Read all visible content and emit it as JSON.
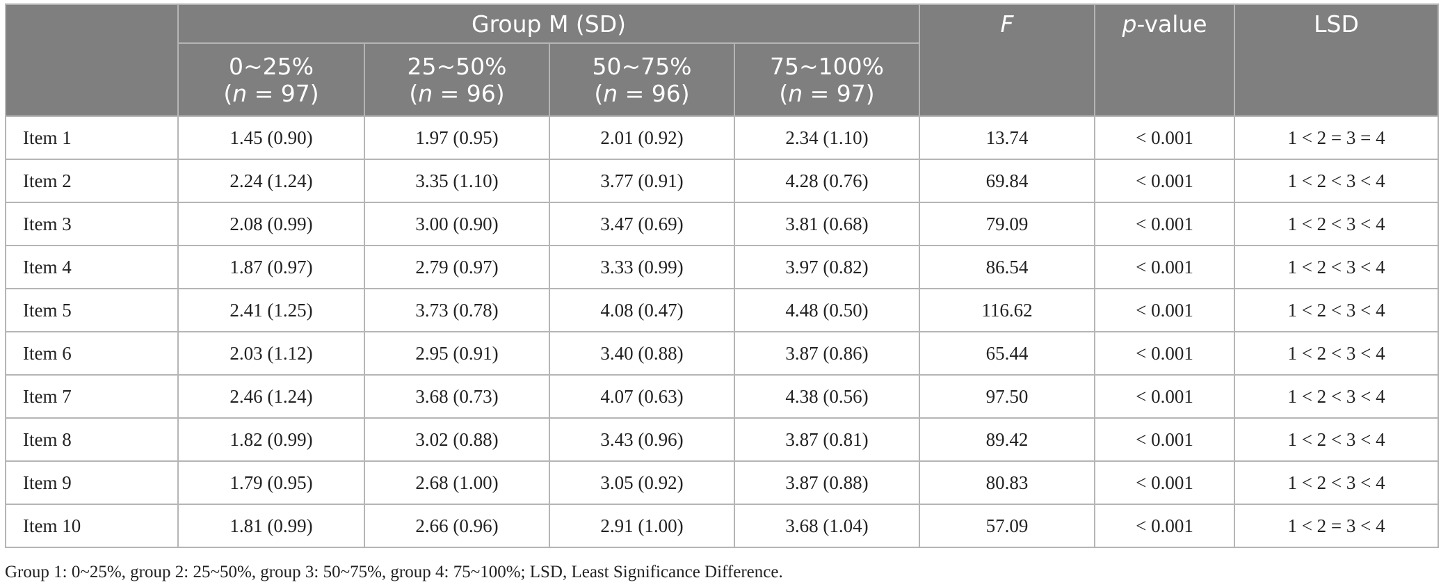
{
  "header": {
    "group_label": "Group M (SD)",
    "f_label": "F",
    "p_italic": "p",
    "p_rest": "-value",
    "lsd_label": "LSD",
    "groups": [
      {
        "range": "0~25%",
        "n": "97"
      },
      {
        "range": "25~50%",
        "n": "96"
      },
      {
        "range": "50~75%",
        "n": "96"
      },
      {
        "range": "75~100%",
        "n": "97"
      }
    ],
    "n_symbol": "n",
    "n_equals": " = "
  },
  "rows": [
    {
      "item": "Item 1",
      "g1": "1.45 (0.90)",
      "g2": "1.97 (0.95)",
      "g3": "2.01 (0.92)",
      "g4": "2.34 (1.10)",
      "f": "13.74",
      "p": "< 0.001",
      "lsd": "1 < 2 = 3 = 4"
    },
    {
      "item": "Item 2",
      "g1": "2.24 (1.24)",
      "g2": "3.35 (1.10)",
      "g3": "3.77 (0.91)",
      "g4": "4.28 (0.76)",
      "f": "69.84",
      "p": "< 0.001",
      "lsd": "1 < 2 < 3 < 4"
    },
    {
      "item": "Item 3",
      "g1": "2.08 (0.99)",
      "g2": "3.00 (0.90)",
      "g3": "3.47 (0.69)",
      "g4": "3.81 (0.68)",
      "f": "79.09",
      "p": "< 0.001",
      "lsd": "1 < 2 < 3 < 4"
    },
    {
      "item": "Item 4",
      "g1": "1.87 (0.97)",
      "g2": "2.79 (0.97)",
      "g3": "3.33 (0.99)",
      "g4": "3.97 (0.82)",
      "f": "86.54",
      "p": "< 0.001",
      "lsd": "1 < 2 < 3 < 4"
    },
    {
      "item": "Item 5",
      "g1": "2.41 (1.25)",
      "g2": "3.73 (0.78)",
      "g3": "4.08 (0.47)",
      "g4": "4.48 (0.50)",
      "f": "116.62",
      "p": "< 0.001",
      "lsd": "1 < 2 < 3 < 4"
    },
    {
      "item": "Item 6",
      "g1": "2.03 (1.12)",
      "g2": "2.95 (0.91)",
      "g3": "3.40 (0.88)",
      "g4": "3.87 (0.86)",
      "f": "65.44",
      "p": "< 0.001",
      "lsd": "1 < 2 < 3 < 4"
    },
    {
      "item": "Item 7",
      "g1": "2.46 (1.24)",
      "g2": "3.68 (0.73)",
      "g3": "4.07 (0.63)",
      "g4": "4.38 (0.56)",
      "f": "97.50",
      "p": "< 0.001",
      "lsd": "1 < 2 < 3 < 4"
    },
    {
      "item": "Item 8",
      "g1": "1.82 (0.99)",
      "g2": "3.02 (0.88)",
      "g3": "3.43 (0.96)",
      "g4": "3.87 (0.81)",
      "f": "89.42",
      "p": "< 0.001",
      "lsd": "1 < 2 < 3 < 4"
    },
    {
      "item": "Item 9",
      "g1": "1.79 (0.95)",
      "g2": "2.68 (1.00)",
      "g3": "3.05 (0.92)",
      "g4": "3.87 (0.88)",
      "f": "80.83",
      "p": "< 0.001",
      "lsd": "1 < 2 < 3 < 4"
    },
    {
      "item": "Item 10",
      "g1": "1.81 (0.99)",
      "g2": "2.66 (0.96)",
      "g3": "2.91 (1.00)",
      "g4": "3.68 (1.04)",
      "f": "57.09",
      "p": "< 0.001",
      "lsd": "1 < 2 = 3 < 4"
    }
  ],
  "footnote": "Group 1: 0~25%, group 2: 25~50%, group 3: 50~75%, group 4: 75~100%; LSD, Least Significance Difference.",
  "colors": {
    "header_bg": "#7f7f7f",
    "header_text": "#ffffff",
    "border": "#b5b5b5",
    "body_text": "#222222"
  }
}
